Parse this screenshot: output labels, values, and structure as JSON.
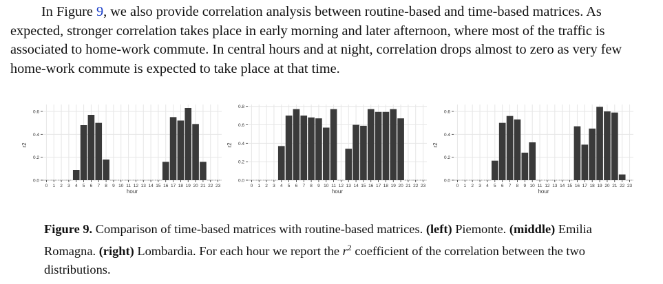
{
  "paragraph": {
    "pre_ref": "In Figure ",
    "ref": "9",
    "post_ref": ", we also provide correlation analysis between routine-based and time-based matrices. As expected, stronger correlation takes place in early morning and later afternoon, where most of the traffic is associated to home-work commute. In central hours and at night, correlation drops almost to zero as very few home-work commute is expected to take place at that time."
  },
  "caption": {
    "label": "Figure 9.",
    "text1": " Comparison of time-based matrices with routine-based matrices. ",
    "left_tag": "(left)",
    "left_name": " Piemonte. ",
    "middle_tag": "(middle)",
    "middle_name": " Emilia Romagna. ",
    "right_tag": "(right)",
    "right_name": " Lombardia. For each hour we report the ",
    "r_symbol": "r",
    "r_sup": "2",
    "text_end": " coefficient of the correlation between the two distributions."
  },
  "colors": {
    "bar": "#3a3a3a",
    "grid": "#e6e6e6",
    "axis_text": "#333333",
    "ref_link": "#1a3ec8"
  },
  "chart_data": [
    {
      "type": "bar",
      "xlabel": "hour",
      "ylabel": "r2",
      "categories": [
        "0",
        "1",
        "2",
        "3",
        "4",
        "5",
        "6",
        "7",
        "8",
        "9",
        "10",
        "11",
        "12",
        "13",
        "14",
        "15",
        "16",
        "17",
        "18",
        "19",
        "20",
        "21",
        "22",
        "23"
      ],
      "values": [
        0,
        0,
        0,
        0,
        0.09,
        0.48,
        0.57,
        0.5,
        0.18,
        0,
        0,
        0,
        0,
        0,
        0,
        0,
        0.16,
        0.55,
        0.52,
        0.63,
        0.49,
        0.16,
        0,
        0
      ],
      "yticks": [
        0.0,
        0.2,
        0.4,
        0.6
      ],
      "ytick_labels": [
        "0.0",
        "0.2",
        "0.4",
        "0.6"
      ],
      "ylim": [
        0,
        0.66
      ]
    },
    {
      "type": "bar",
      "xlabel": "hour",
      "ylabel": "r2",
      "categories": [
        "0",
        "1",
        "2",
        "3",
        "4",
        "5",
        "6",
        "7",
        "8",
        "9",
        "10",
        "11",
        "12",
        "13",
        "14",
        "15",
        "16",
        "17",
        "18",
        "19",
        "20",
        "21",
        "22",
        "23"
      ],
      "values": [
        0,
        0,
        0,
        0,
        0.37,
        0.7,
        0.77,
        0.7,
        0.68,
        0.67,
        0.57,
        0.77,
        0,
        0.34,
        0.6,
        0.59,
        0.77,
        0.74,
        0.74,
        0.77,
        0.67,
        0,
        0,
        0
      ],
      "yticks": [
        0.0,
        0.2,
        0.4,
        0.6,
        0.8
      ],
      "ytick_labels": [
        "0.0",
        "0.2",
        "0.4",
        "0.6",
        "0.8"
      ],
      "ylim": [
        0,
        0.82
      ]
    },
    {
      "type": "bar",
      "xlabel": "hour",
      "ylabel": "r2",
      "categories": [
        "0",
        "1",
        "2",
        "3",
        "4",
        "5",
        "6",
        "7",
        "8",
        "9",
        "10",
        "11",
        "12",
        "13",
        "14",
        "15",
        "16",
        "17",
        "18",
        "19",
        "20",
        "21",
        "22",
        "23"
      ],
      "values": [
        0,
        0,
        0,
        0,
        0,
        0.17,
        0.5,
        0.56,
        0.53,
        0.24,
        0.33,
        0,
        0,
        0,
        0,
        0,
        0.47,
        0.31,
        0.45,
        0.64,
        0.6,
        0.59,
        0.05,
        0
      ],
      "yticks": [
        0.0,
        0.2,
        0.4,
        0.6
      ],
      "ytick_labels": [
        "0.0",
        "0.2",
        "0.4",
        "0.6"
      ],
      "ylim": [
        0,
        0.66
      ]
    }
  ]
}
